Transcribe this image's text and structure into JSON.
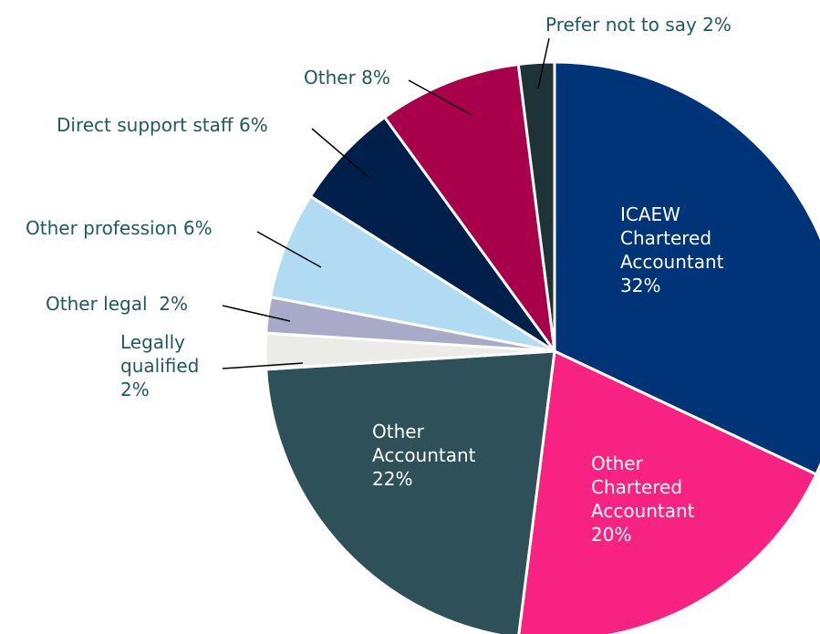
{
  "chart_data": {
    "type": "pie",
    "categories": [
      "ICAEW Chartered Accountant",
      "Other Chartered Accountant",
      "Other Accountant",
      "Legally qualified",
      "Other legal ",
      "Other profession",
      "Direct support staff",
      "Other",
      "Prefer not to say"
    ],
    "values": [
      32,
      20,
      22,
      2,
      2,
      6,
      6,
      8,
      2
    ],
    "value_labels": [
      "32%",
      "20%",
      "22%",
      "2%",
      "2%",
      "6%",
      "6%",
      "8%",
      "2%"
    ],
    "colors": [
      "#003478",
      "#f72281",
      "#2d5059",
      "#ebebe8",
      "#a8aac8",
      "#b0dbf3",
      "#001f4a",
      "#a8004a",
      "#1e3338"
    ]
  }
}
